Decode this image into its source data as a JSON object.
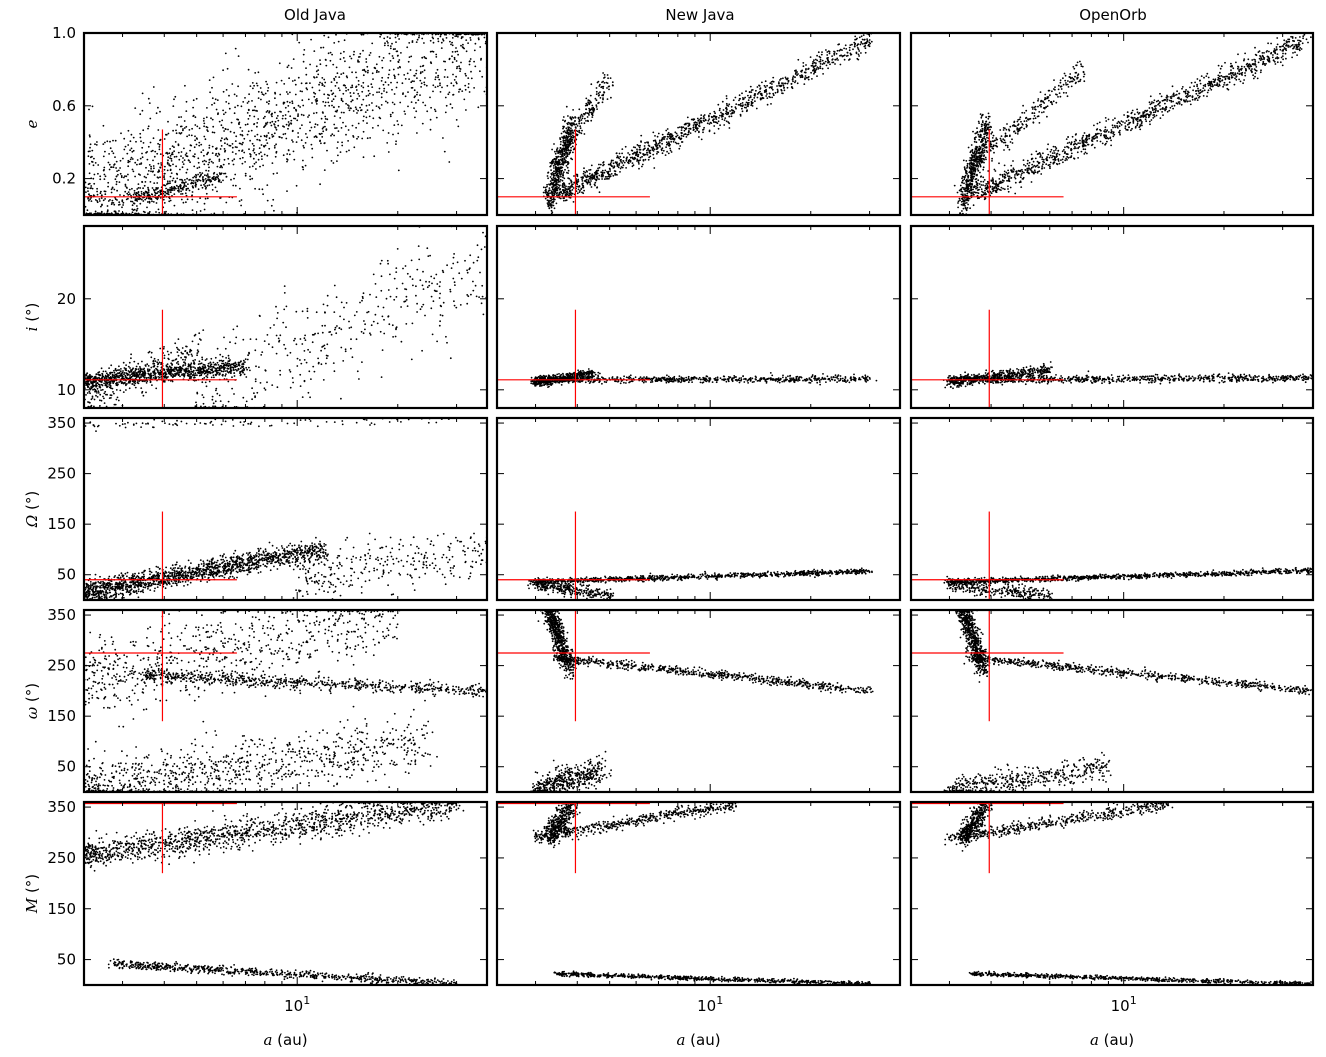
{
  "chart_data": {
    "type": "scatter",
    "x_scale": "log",
    "xlim": [
      2.3,
      37
    ],
    "x_label_var": "a",
    "x_label_unit": " (au)",
    "x_ticks": [
      {
        "value": 10,
        "base": "10",
        "exp": "1"
      }
    ],
    "columns": [
      "Old Java",
      "New Java",
      "OpenOrb"
    ],
    "rows": [
      {
        "id": "e",
        "label_var": "e",
        "label_unit": "",
        "ylim": [
          0.0,
          1.0
        ],
        "yticks": [
          0.2,
          0.6,
          1.0
        ],
        "tick_format": "fixed1",
        "reference": {
          "x": 3.95,
          "y": 0.1,
          "hx": [
            2.3,
            6.6
          ],
          "vy": [
            0.0,
            0.47
          ]
        }
      },
      {
        "id": "i",
        "label_var": "i",
        "label_unit": " (°)",
        "ylim": [
          8.0,
          28.0
        ],
        "yticks": [
          10,
          20
        ],
        "reference": {
          "x": 3.95,
          "y": 11.1,
          "hx": [
            2.3,
            6.6
          ],
          "vy": [
            8.0,
            18.8
          ]
        }
      },
      {
        "id": "Omega",
        "label_var": "Ω",
        "label_unit": " (°)",
        "ylim": [
          0,
          360
        ],
        "yticks": [
          50,
          150,
          250,
          350
        ],
        "reference": {
          "x": 3.95,
          "y": 40,
          "hx": [
            2.3,
            6.6
          ],
          "vy": [
            0,
            175
          ]
        }
      },
      {
        "id": "omega",
        "label_var": "ω",
        "label_unit": " (°)",
        "ylim": [
          0,
          360
        ],
        "yticks": [
          50,
          150,
          250,
          350
        ],
        "reference": {
          "x": 3.95,
          "y": 275,
          "hx": [
            2.3,
            6.6
          ],
          "vy": [
            140,
            360
          ]
        }
      },
      {
        "id": "M",
        "label_var": "M",
        "label_unit": " (°)",
        "ylim": [
          0,
          360
        ],
        "yticks": [
          50,
          150,
          250,
          350
        ],
        "reference": {
          "x": 3.95,
          "y": 357,
          "hx": [
            2.3,
            6.6
          ],
          "vy": [
            220,
            360
          ]
        }
      }
    ],
    "panels": [
      [
        {
          "row": "e",
          "column": "Old Java",
          "clouds": [
            {
              "x": [
                2.3,
                37
              ],
              "y": [
                0.06,
                0.98
              ],
              "spread": 0.18,
              "n": 1800
            },
            {
              "x": [
                3.2,
                6.0
              ],
              "y": [
                0.08,
                0.22
              ],
              "spread": 0.02,
              "n": 250
            }
          ]
        },
        {
          "row": "e",
          "column": "New Java",
          "clouds": [
            {
              "x": [
                3.6,
                30
              ],
              "y": [
                0.12,
                0.96
              ],
              "spread": 0.03,
              "n": 1100
            },
            {
              "x": [
                3.35,
                5.0
              ],
              "y": [
                0.25,
                0.75
              ],
              "spread": 0.03,
              "n": 250
            },
            {
              "x": [
                3.3,
                3.9
              ],
              "y": [
                0.08,
                0.5
              ],
              "spread": 0.05,
              "n": 500
            }
          ]
        },
        {
          "row": "e",
          "column": "OpenOrb",
          "clouds": [
            {
              "x": [
                3.6,
                35
              ],
              "y": [
                0.12,
                0.96
              ],
              "spread": 0.03,
              "n": 1100
            },
            {
              "x": [
                3.4,
                7.5
              ],
              "y": [
                0.25,
                0.8
              ],
              "spread": 0.03,
              "n": 300
            },
            {
              "x": [
                3.3,
                3.9
              ],
              "y": [
                0.08,
                0.5
              ],
              "spread": 0.05,
              "n": 500
            }
          ]
        }
      ],
      [
        {
          "row": "i",
          "column": "Old Java",
          "clouds": [
            {
              "x": [
                2.3,
                7.0
              ],
              "y": [
                11.0,
                12.6
              ],
              "spread": 0.45,
              "n": 900
            },
            {
              "x": [
                5.0,
                37
              ],
              "y": [
                9.5,
                24.0
              ],
              "spread": 3.0,
              "n": 450
            },
            {
              "x": [
                2.3,
                5.0
              ],
              "y": [
                9.5,
                14.0
              ],
              "spread": 1.1,
              "n": 300
            }
          ]
        },
        {
          "row": "i",
          "column": "New Java",
          "clouds": [
            {
              "x": [
                3.0,
                30
              ],
              "y": [
                11.1,
                11.2
              ],
              "spread": 0.18,
              "n": 700
            },
            {
              "x": [
                3.0,
                4.5
              ],
              "y": [
                10.8,
                11.8
              ],
              "spread": 0.25,
              "n": 500
            }
          ]
        },
        {
          "row": "i",
          "column": "OpenOrb",
          "clouds": [
            {
              "x": [
                3.0,
                37
              ],
              "y": [
                11.1,
                11.3
              ],
              "spread": 0.2,
              "n": 800
            },
            {
              "x": [
                3.0,
                6.0
              ],
              "y": [
                10.8,
                12.2
              ],
              "spread": 0.3,
              "n": 500
            }
          ]
        }
      ],
      [
        {
          "row": "Omega",
          "column": "Old Java",
          "clouds": [
            {
              "x": [
                2.3,
                12
              ],
              "y": [
                15,
                100
              ],
              "spread": 10,
              "n": 1500
            },
            {
              "x": [
                10,
                37
              ],
              "y": [
                50,
                90
              ],
              "spread": 25,
              "n": 300
            },
            {
              "x": [
                2.3,
                30
              ],
              "y": [
                345,
                358
              ],
              "spread": 5,
              "n": 90
            }
          ]
        },
        {
          "row": "Omega",
          "column": "New Java",
          "clouds": [
            {
              "x": [
                3.0,
                30
              ],
              "y": [
                36,
                57
              ],
              "spread": 2.5,
              "n": 900
            },
            {
              "x": [
                3.0,
                5.0
              ],
              "y": [
                30,
                10
              ],
              "spread": 6,
              "n": 300
            }
          ]
        },
        {
          "row": "Omega",
          "column": "OpenOrb",
          "clouds": [
            {
              "x": [
                3.0,
                37
              ],
              "y": [
                36,
                58
              ],
              "spread": 2.5,
              "n": 1000
            },
            {
              "x": [
                3.0,
                6.0
              ],
              "y": [
                30,
                8
              ],
              "spread": 7,
              "n": 300
            }
          ]
        }
      ],
      [
        {
          "row": "omega",
          "column": "Old Java",
          "clouds": [
            {
              "x": [
                3.5,
                37
              ],
              "y": [
                230,
                200
              ],
              "spread": 6,
              "n": 700
            },
            {
              "x": [
                2.3,
                20
              ],
              "y": [
                220,
                355
              ],
              "spread": 40,
              "n": 700
            },
            {
              "x": [
                2.3,
                25
              ],
              "y": [
                5,
                100
              ],
              "spread": 28,
              "n": 900
            }
          ]
        },
        {
          "row": "omega",
          "column": "New Java",
          "clouds": [
            {
              "x": [
                3.5,
                30
              ],
              "y": [
                265,
                200
              ],
              "spread": 4,
              "n": 700
            },
            {
              "x": [
                3.3,
                3.8
              ],
              "y": [
                360,
                240
              ],
              "spread": 10,
              "n": 600
            },
            {
              "x": [
                3.0,
                4.8
              ],
              "y": [
                5,
                45
              ],
              "spread": 12,
              "n": 450
            }
          ]
        },
        {
          "row": "omega",
          "column": "OpenOrb",
          "clouds": [
            {
              "x": [
                3.5,
                37
              ],
              "y": [
                265,
                200
              ],
              "spread": 4,
              "n": 700
            },
            {
              "x": [
                3.3,
                3.8
              ],
              "y": [
                360,
                240
              ],
              "spread": 10,
              "n": 600
            },
            {
              "x": [
                3.0,
                9.0
              ],
              "y": [
                5,
                50
              ],
              "spread": 12,
              "n": 450
            }
          ]
        }
      ],
      [
        {
          "row": "M",
          "column": "Old Java",
          "clouds": [
            {
              "x": [
                2.3,
                30
              ],
              "y": [
                255,
                358
              ],
              "spread": 14,
              "n": 1400
            },
            {
              "x": [
                2.8,
                30
              ],
              "y": [
                42,
                2
              ],
              "spread": 4,
              "n": 700
            }
          ]
        },
        {
          "row": "M",
          "column": "New Java",
          "clouds": [
            {
              "x": [
                3.0,
                12
              ],
              "y": [
                290,
                356
              ],
              "spread": 6,
              "n": 500
            },
            {
              "x": [
                3.3,
                3.9
              ],
              "y": [
                290,
                360
              ],
              "spread": 12,
              "n": 400
            },
            {
              "x": [
                3.5,
                30
              ],
              "y": [
                22,
                2
              ],
              "spread": 2,
              "n": 700
            }
          ]
        },
        {
          "row": "M",
          "column": "OpenOrb",
          "clouds": [
            {
              "x": [
                3.0,
                14
              ],
              "y": [
                288,
                356
              ],
              "spread": 6,
              "n": 500
            },
            {
              "x": [
                3.3,
                3.9
              ],
              "y": [
                290,
                360
              ],
              "spread": 12,
              "n": 400
            },
            {
              "x": [
                3.5,
                37
              ],
              "y": [
                22,
                2
              ],
              "spread": 2,
              "n": 700
            }
          ]
        }
      ]
    ],
    "point_color": "#000000",
    "reference_color": "#ff0000",
    "grid": false,
    "legend": "none"
  }
}
